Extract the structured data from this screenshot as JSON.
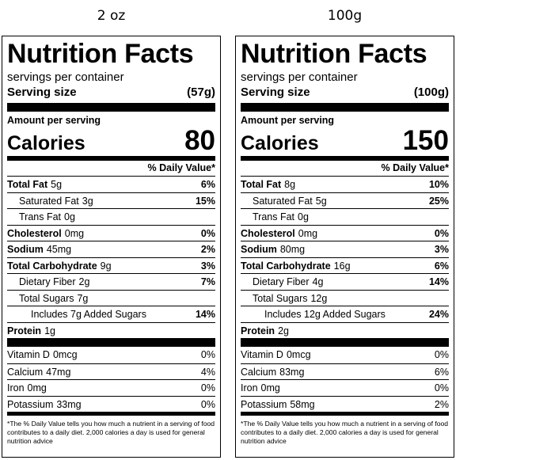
{
  "labels": [
    {
      "heading": "2 oz",
      "title": "Nutrition Facts",
      "servings": "servings per container",
      "serving_size_label": "Serving size",
      "serving_size": "(57g)",
      "amount_per_serving": "Amount per serving",
      "calories_label": "Calories",
      "calories": 80,
      "daily_value_header": "% Daily Value*",
      "nutrients": [
        {
          "name": "Total Fat",
          "amount": "5g",
          "dv": "6%"
        },
        {
          "name": "Saturated Fat",
          "amount": "3g",
          "dv": "15%"
        },
        {
          "name": "Trans Fat",
          "amount": "0g"
        },
        {
          "name": "Cholesterol",
          "amount": "0mg",
          "dv": "0%"
        },
        {
          "name": "Sodium",
          "amount": "45mg",
          "dv": "2%"
        },
        {
          "name": "Total Carbohydrate",
          "amount": "9g",
          "dv": "3%"
        },
        {
          "name": "Dietary Fiber",
          "amount": "2g",
          "dv": "7%"
        },
        {
          "name": "Total Sugars",
          "amount": "7g"
        },
        {
          "name": "Includes 7g Added Sugars",
          "dv": "14%"
        },
        {
          "name": "Protein",
          "amount": "1g"
        }
      ],
      "vitamins": [
        {
          "name": "Vitamin D",
          "amount": "0mcg",
          "dv": "0%"
        },
        {
          "name": "Calcium",
          "amount": "47mg",
          "dv": "4%"
        },
        {
          "name": "Iron",
          "amount": "0mg",
          "dv": "0%"
        },
        {
          "name": "Potassium",
          "amount": "33mg",
          "dv": "0%"
        }
      ],
      "footnote": "*The % Daily Value tells you how much a nutrient in a serving of food contributes to a daily diet. 2,000 calories a day is used for general nutrition advice"
    },
    {
      "heading": "100g",
      "title": "Nutrition Facts",
      "servings": "servings per container",
      "serving_size_label": "Serving size",
      "serving_size": "(100g)",
      "amount_per_serving": "Amount per serving",
      "calories_label": "Calories",
      "calories": 150,
      "daily_value_header": "% Daily Value*",
      "nutrients": [
        {
          "name": "Total Fat",
          "amount": "8g",
          "dv": "10%"
        },
        {
          "name": "Saturated Fat",
          "amount": "5g",
          "dv": "25%"
        },
        {
          "name": "Trans Fat",
          "amount": "0g"
        },
        {
          "name": "Cholesterol",
          "amount": "0mg",
          "dv": "0%"
        },
        {
          "name": "Sodium",
          "amount": "80mg",
          "dv": "3%"
        },
        {
          "name": "Total Carbohydrate",
          "amount": "16g",
          "dv": "6%"
        },
        {
          "name": "Dietary Fiber",
          "amount": "4g",
          "dv": "14%"
        },
        {
          "name": "Total Sugars",
          "amount": "12g"
        },
        {
          "name": "Includes 12g Added Sugars",
          "dv": "24%"
        },
        {
          "name": "Protein",
          "amount": "2g"
        }
      ],
      "vitamins": [
        {
          "name": "Vitamin D",
          "amount": "0mcg",
          "dv": "0%"
        },
        {
          "name": "Calcium",
          "amount": "83mg",
          "dv": "6%"
        },
        {
          "name": "Iron",
          "amount": "0mg",
          "dv": "0%"
        },
        {
          "name": "Potassium",
          "amount": "58mg",
          "dv": "2%"
        }
      ],
      "footnote": "*The % Daily Value tells you how much a nutrient in a serving of food contributes to a daily diet. 2,000 calories a day is used for general nutrition advice"
    }
  ]
}
